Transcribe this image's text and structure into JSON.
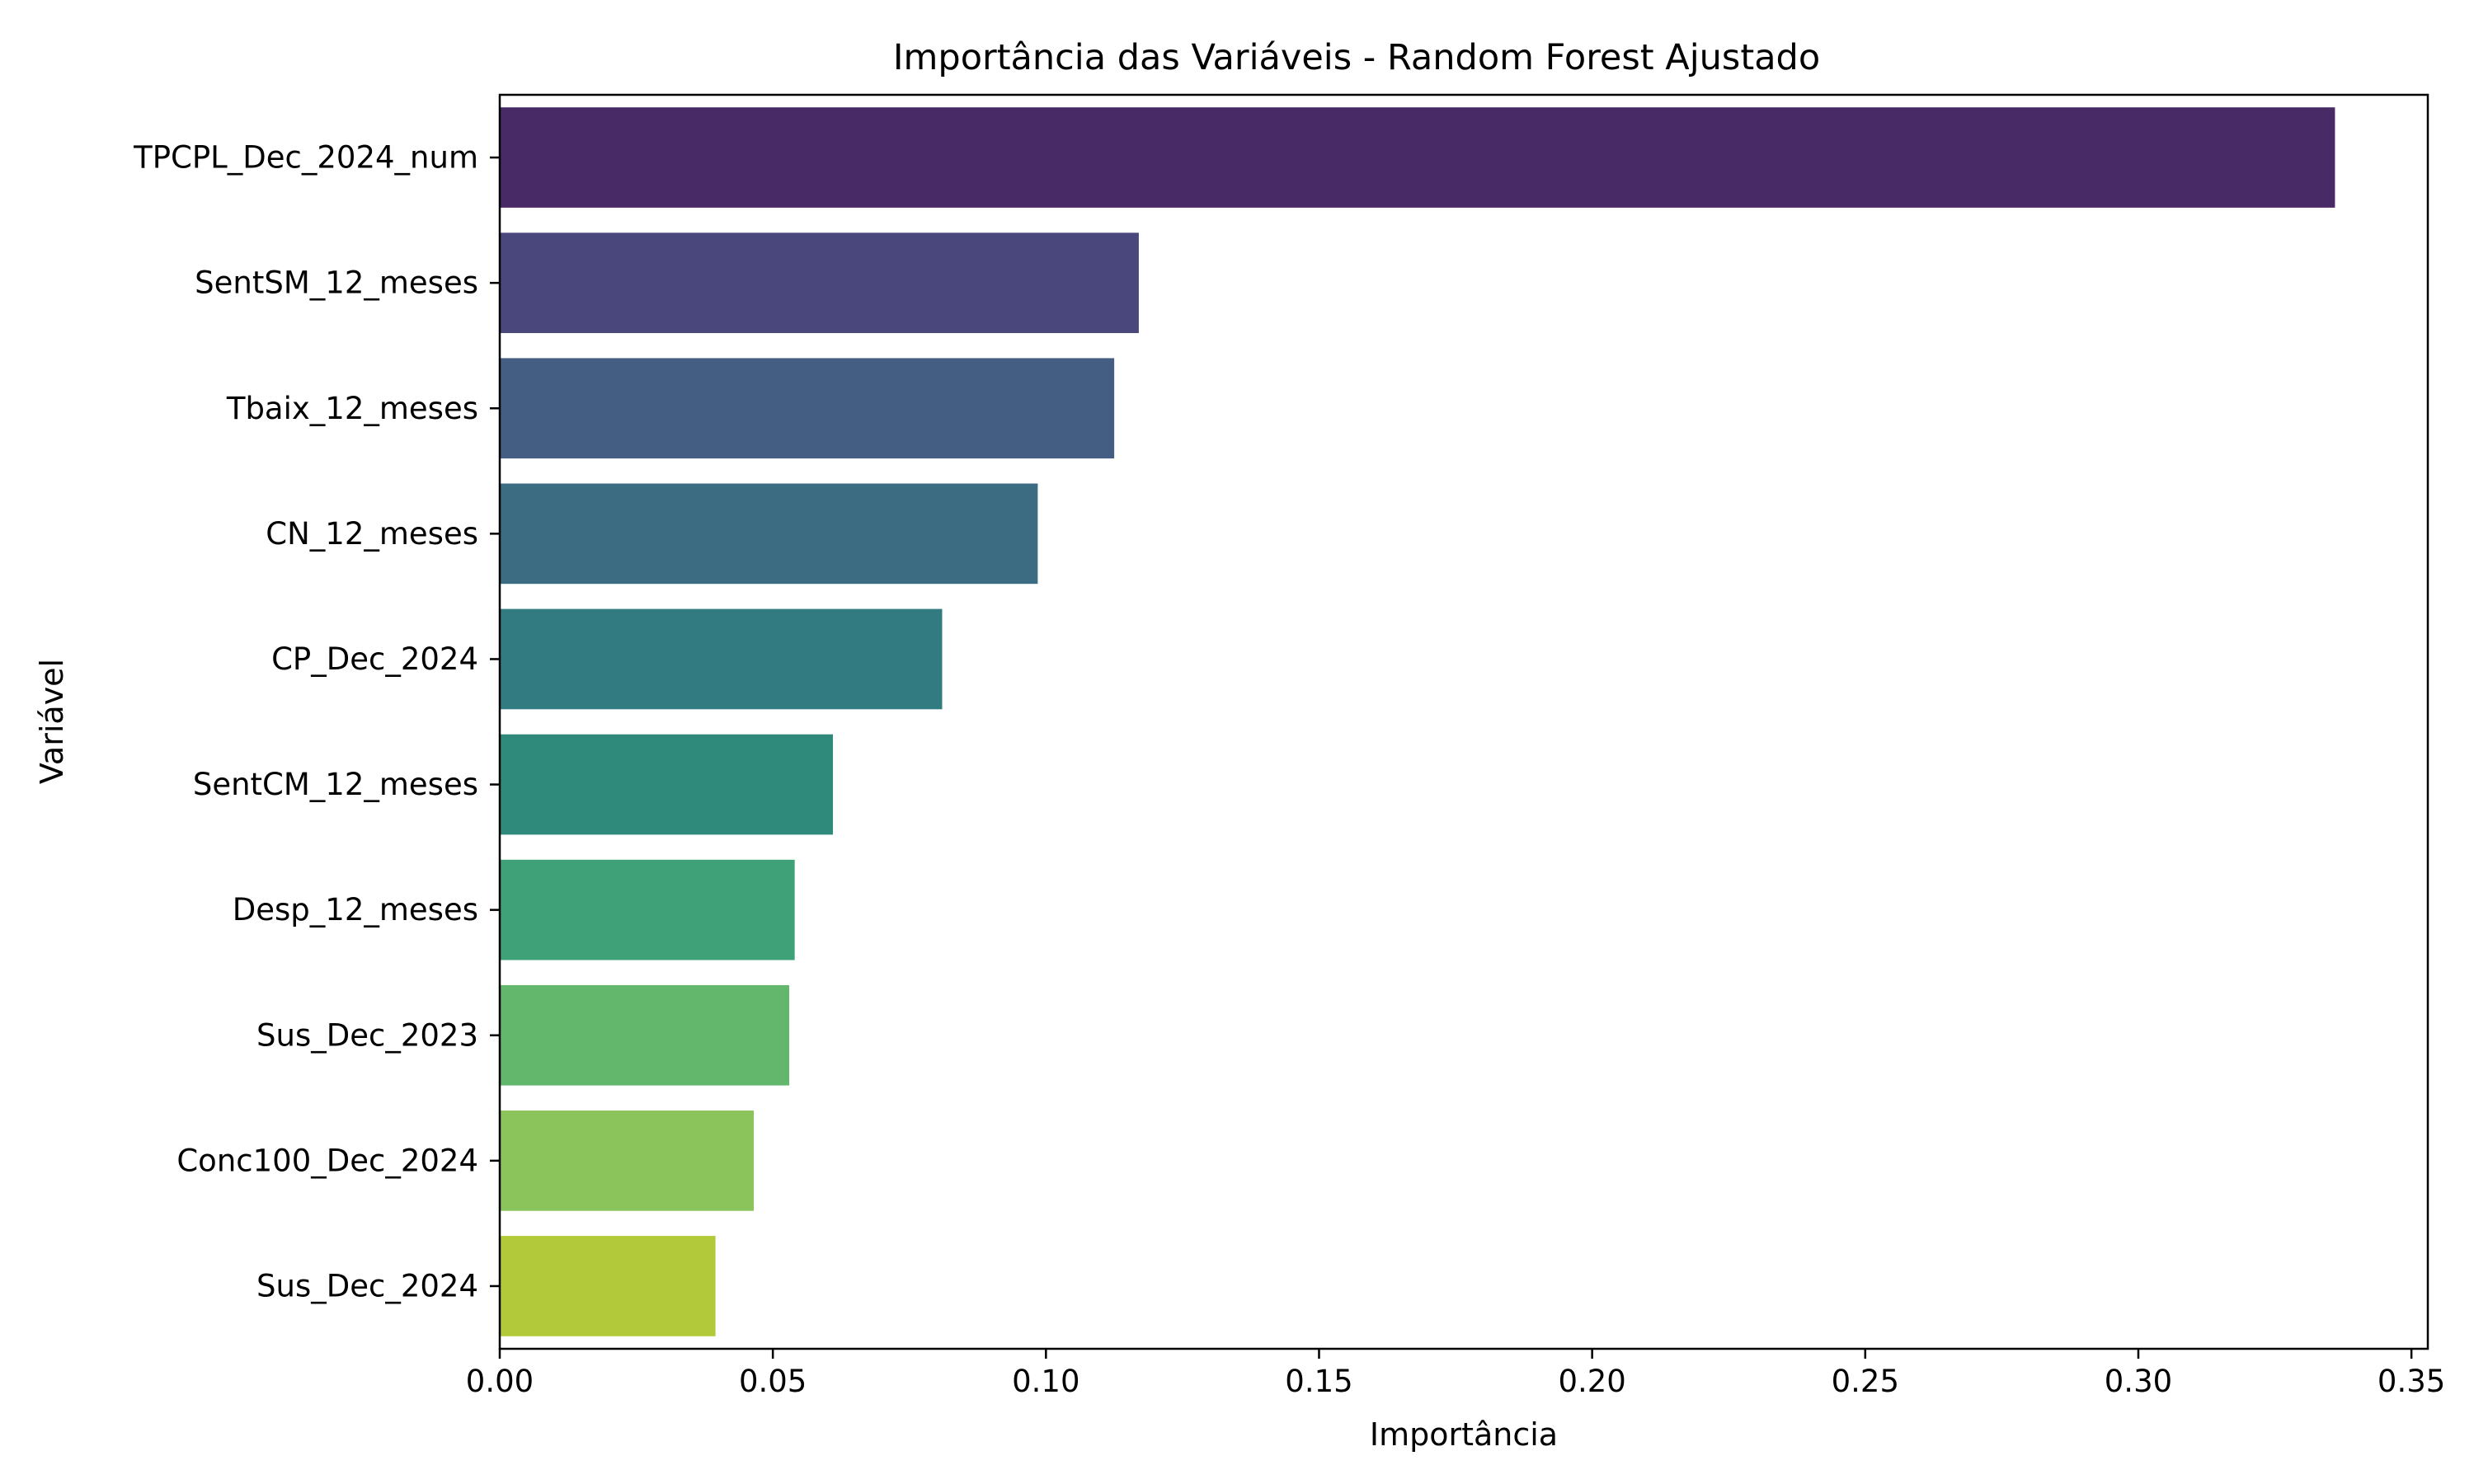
{
  "chart_data": {
    "type": "bar",
    "orientation": "horizontal",
    "title": "Importância das Variáveis - Random Forest Ajustado",
    "xlabel": "Importância",
    "ylabel": "Variável",
    "xlim": [
      0,
      0.353
    ],
    "xticks": [
      0.0,
      0.05,
      0.1,
      0.15,
      0.2,
      0.25,
      0.3,
      0.35
    ],
    "xtick_labels": [
      "0.00",
      "0.05",
      "0.10",
      "0.15",
      "0.20",
      "0.25",
      "0.30",
      "0.35"
    ],
    "grid": false,
    "legend": "none",
    "categories": [
      "TPCPL_Dec_2024_num",
      "SentSM_12_meses",
      "Tbaix_12_meses",
      "CN_12_meses",
      "CP_Dec_2024",
      "SentCM_12_meses",
      "Desp_12_meses",
      "Sus_Dec_2023",
      "Conc100_Dec_2024",
      "Sus_Dec_2024"
    ],
    "values": [
      0.336,
      0.117,
      0.1125,
      0.0985,
      0.081,
      0.061,
      0.054,
      0.053,
      0.0465,
      0.0395
    ],
    "colors": [
      "#482a67",
      "#4a477c",
      "#445e83",
      "#3b6c82",
      "#317b81",
      "#2f8a7c",
      "#3ea178",
      "#63b76d",
      "#8bc45a",
      "#b2c93a"
    ]
  }
}
